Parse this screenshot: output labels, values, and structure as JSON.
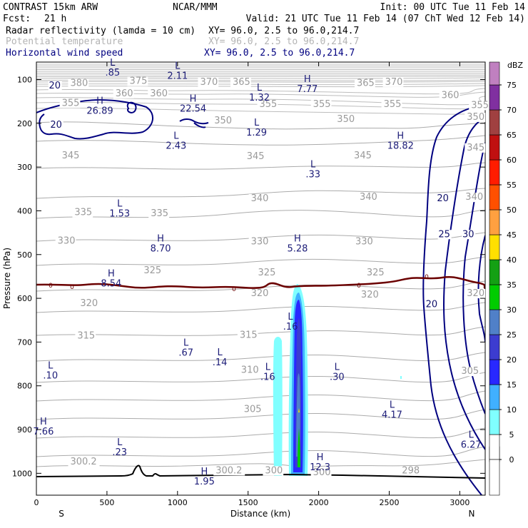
{
  "header": {
    "model": "CONTRAST 15km ARW",
    "org": "NCAR/MMM",
    "init": "Init: 00 UTC Tue 11 Feb 14",
    "fcst_label": "Fcst:",
    "fcst_value": "21 h",
    "valid": "Valid: 21 UTC Tue 11 Feb 14 (07 ChT Wed 12 Feb 14)",
    "fields": [
      {
        "name": "Radar reflectivity (lamda = 10 cm)",
        "xy": "XY=  96.0,  2.5 to  96.0,214.7",
        "color": "#000000"
      },
      {
        "name": "Potential temperature",
        "xy": "XY=  96.0,  2.5 to  96.0,214.7",
        "color": "#b4b4b4"
      },
      {
        "name": "Horizontal wind speed",
        "xy": "XY=  96.0,  2.5 to  96.0,214.7",
        "color": "#000080"
      }
    ]
  },
  "chart_data": {
    "type": "cross-section",
    "xlabel": "Distance (km)",
    "ylabel": "Pressure (hPa)",
    "xlim": [
      0,
      3180
    ],
    "ylim": [
      1050,
      60
    ],
    "x_ticks": [
      0,
      500,
      1000,
      1500,
      2000,
      2500,
      3000
    ],
    "y_ticks": [
      100,
      200,
      300,
      400,
      500,
      600,
      700,
      800,
      900,
      1000
    ],
    "x_end_labels": {
      "left": "S",
      "right": "N"
    },
    "colorbar": {
      "title": "dBZ",
      "levels": [
        "0",
        "5",
        "10",
        "15",
        "20",
        "25",
        "30",
        "35",
        "40",
        "45",
        "50",
        "55",
        "60",
        "65",
        "70",
        "75"
      ],
      "colors": [
        "#ffffff",
        "#80ffff",
        "#40b0ff",
        "#2828ff",
        "#3c3cd0",
        "#5080c8",
        "#00cc00",
        "#14a014",
        "#ffe000",
        "#ffa040",
        "#ff5000",
        "#ff1c00",
        "#c01010",
        "#a04040",
        "#8030a0",
        "#c080c0"
      ]
    },
    "theta_labels": [
      {
        "text": "380",
        "x": 240,
        "p": 115
      },
      {
        "text": "375",
        "x": 660,
        "p": 110
      },
      {
        "text": "370",
        "x": 1160,
        "p": 112
      },
      {
        "text": "365",
        "x": 1390,
        "p": 112
      },
      {
        "text": "365",
        "x": 2270,
        "p": 115
      },
      {
        "text": "370",
        "x": 2470,
        "p": 112
      },
      {
        "text": "360",
        "x": 560,
        "p": 138
      },
      {
        "text": "360",
        "x": 805,
        "p": 138
      },
      {
        "text": "360",
        "x": 2870,
        "p": 142
      },
      {
        "text": "355",
        "x": 180,
        "p": 160
      },
      {
        "text": "355",
        "x": 1580,
        "p": 163
      },
      {
        "text": "355",
        "x": 1960,
        "p": 163
      },
      {
        "text": "355",
        "x": 2460,
        "p": 163
      },
      {
        "text": "355",
        "x": 3080,
        "p": 165
      },
      {
        "text": "350",
        "x": 1260,
        "p": 200
      },
      {
        "text": "350",
        "x": 2130,
        "p": 197
      },
      {
        "text": "350",
        "x": 3050,
        "p": 192
      },
      {
        "text": "345",
        "x": 180,
        "p": 280
      },
      {
        "text": "345",
        "x": 1490,
        "p": 282
      },
      {
        "text": "345",
        "x": 2250,
        "p": 280
      },
      {
        "text": "345",
        "x": 3050,
        "p": 262
      },
      {
        "text": "340",
        "x": 1520,
        "p": 378
      },
      {
        "text": "340",
        "x": 2290,
        "p": 375
      },
      {
        "text": "340",
        "x": 3040,
        "p": 375
      },
      {
        "text": "335",
        "x": 270,
        "p": 410
      },
      {
        "text": "335",
        "x": 810,
        "p": 412
      },
      {
        "text": "330",
        "x": 150,
        "p": 475
      },
      {
        "text": "330",
        "x": 1520,
        "p": 477
      },
      {
        "text": "330",
        "x": 2260,
        "p": 477
      },
      {
        "text": "325",
        "x": 760,
        "p": 543
      },
      {
        "text": "325",
        "x": 1570,
        "p": 548
      },
      {
        "text": "325",
        "x": 2340,
        "p": 548
      },
      {
        "text": "320",
        "x": 310,
        "p": 618
      },
      {
        "text": "320",
        "x": 1520,
        "p": 595
      },
      {
        "text": "320",
        "x": 2300,
        "p": 598
      },
      {
        "text": "320",
        "x": 3050,
        "p": 595
      },
      {
        "text": "315",
        "x": 290,
        "p": 692
      },
      {
        "text": "315",
        "x": 1440,
        "p": 690
      },
      {
        "text": "310",
        "x": 1450,
        "p": 770
      },
      {
        "text": "305",
        "x": 1470,
        "p": 860
      },
      {
        "text": "305",
        "x": 3010,
        "p": 773
      },
      {
        "text": "300.2",
        "x": 240,
        "p": 980
      },
      {
        "text": "300.2",
        "x": 1270,
        "p": 1000
      },
      {
        "text": "300",
        "x": 1620,
        "p": 1000
      },
      {
        "text": "300",
        "x": 1960,
        "p": 1004
      },
      {
        "text": "298",
        "x": 2590,
        "p": 1000
      }
    ],
    "extrema": [
      {
        "kind": "L",
        "value": ".85",
        "x": 540,
        "p": 88
      },
      {
        "kind": "L",
        "value": "2.11",
        "x": 1000,
        "p": 95
      },
      {
        "kind": "H",
        "value": "26.89",
        "x": 450,
        "p": 175
      },
      {
        "kind": "H",
        "value": "22.54",
        "x": 1110,
        "p": 170
      },
      {
        "kind": "L",
        "value": "1.32",
        "x": 1580,
        "p": 145
      },
      {
        "kind": "H",
        "value": "7.77",
        "x": 1920,
        "p": 125
      },
      {
        "kind": "L",
        "value": "1.29",
        "x": 1560,
        "p": 225
      },
      {
        "kind": "L",
        "value": "2.43",
        "x": 990,
        "p": 255
      },
      {
        "kind": "H",
        "value": "18.82",
        "x": 2580,
        "p": 255
      },
      {
        "kind": "L",
        "value": ".33",
        "x": 1960,
        "p": 320
      },
      {
        "kind": "L",
        "value": "1.53",
        "x": 590,
        "p": 410
      },
      {
        "kind": "H",
        "value": "8.70",
        "x": 880,
        "p": 490
      },
      {
        "kind": "H",
        "value": "5.28",
        "x": 1850,
        "p": 490
      },
      {
        "kind": "H",
        "value": "8.54",
        "x": 530,
        "p": 570
      },
      {
        "kind": "L",
        "value": ".16",
        "x": 1800,
        "p": 668
      },
      {
        "kind": "L",
        "value": ".67",
        "x": 1060,
        "p": 728
      },
      {
        "kind": "L",
        "value": ".14",
        "x": 1300,
        "p": 750
      },
      {
        "kind": "L",
        "value": ".10",
        "x": 100,
        "p": 780
      },
      {
        "kind": "L",
        "value": ".16",
        "x": 1640,
        "p": 783
      },
      {
        "kind": "L",
        "value": ".30",
        "x": 2130,
        "p": 783
      },
      {
        "kind": "L",
        "value": "4.17",
        "x": 2520,
        "p": 870
      },
      {
        "kind": "H",
        "value": "7.66",
        "x": 50,
        "p": 908
      },
      {
        "kind": "L",
        "value": ".23",
        "x": 590,
        "p": 955
      },
      {
        "kind": "L",
        "value": "6.27",
        "x": 3080,
        "p": 938
      },
      {
        "kind": "H",
        "value": "12.3",
        "x": 2010,
        "p": 990
      },
      {
        "kind": "H",
        "value": "1.95",
        "x": 1190,
        "p": 1022
      }
    ],
    "wind_labels": [
      {
        "text": "20",
        "x": 130,
        "p": 120
      },
      {
        "text": "20",
        "x": 140,
        "p": 210
      },
      {
        "text": "20",
        "x": 2880,
        "p": 378
      },
      {
        "text": "25",
        "x": 2890,
        "p": 460
      },
      {
        "text": "30",
        "x": 3060,
        "p": 460
      },
      {
        "text": "20",
        "x": 2800,
        "p": 620
      }
    ],
    "freezing_level_label": "0"
  }
}
